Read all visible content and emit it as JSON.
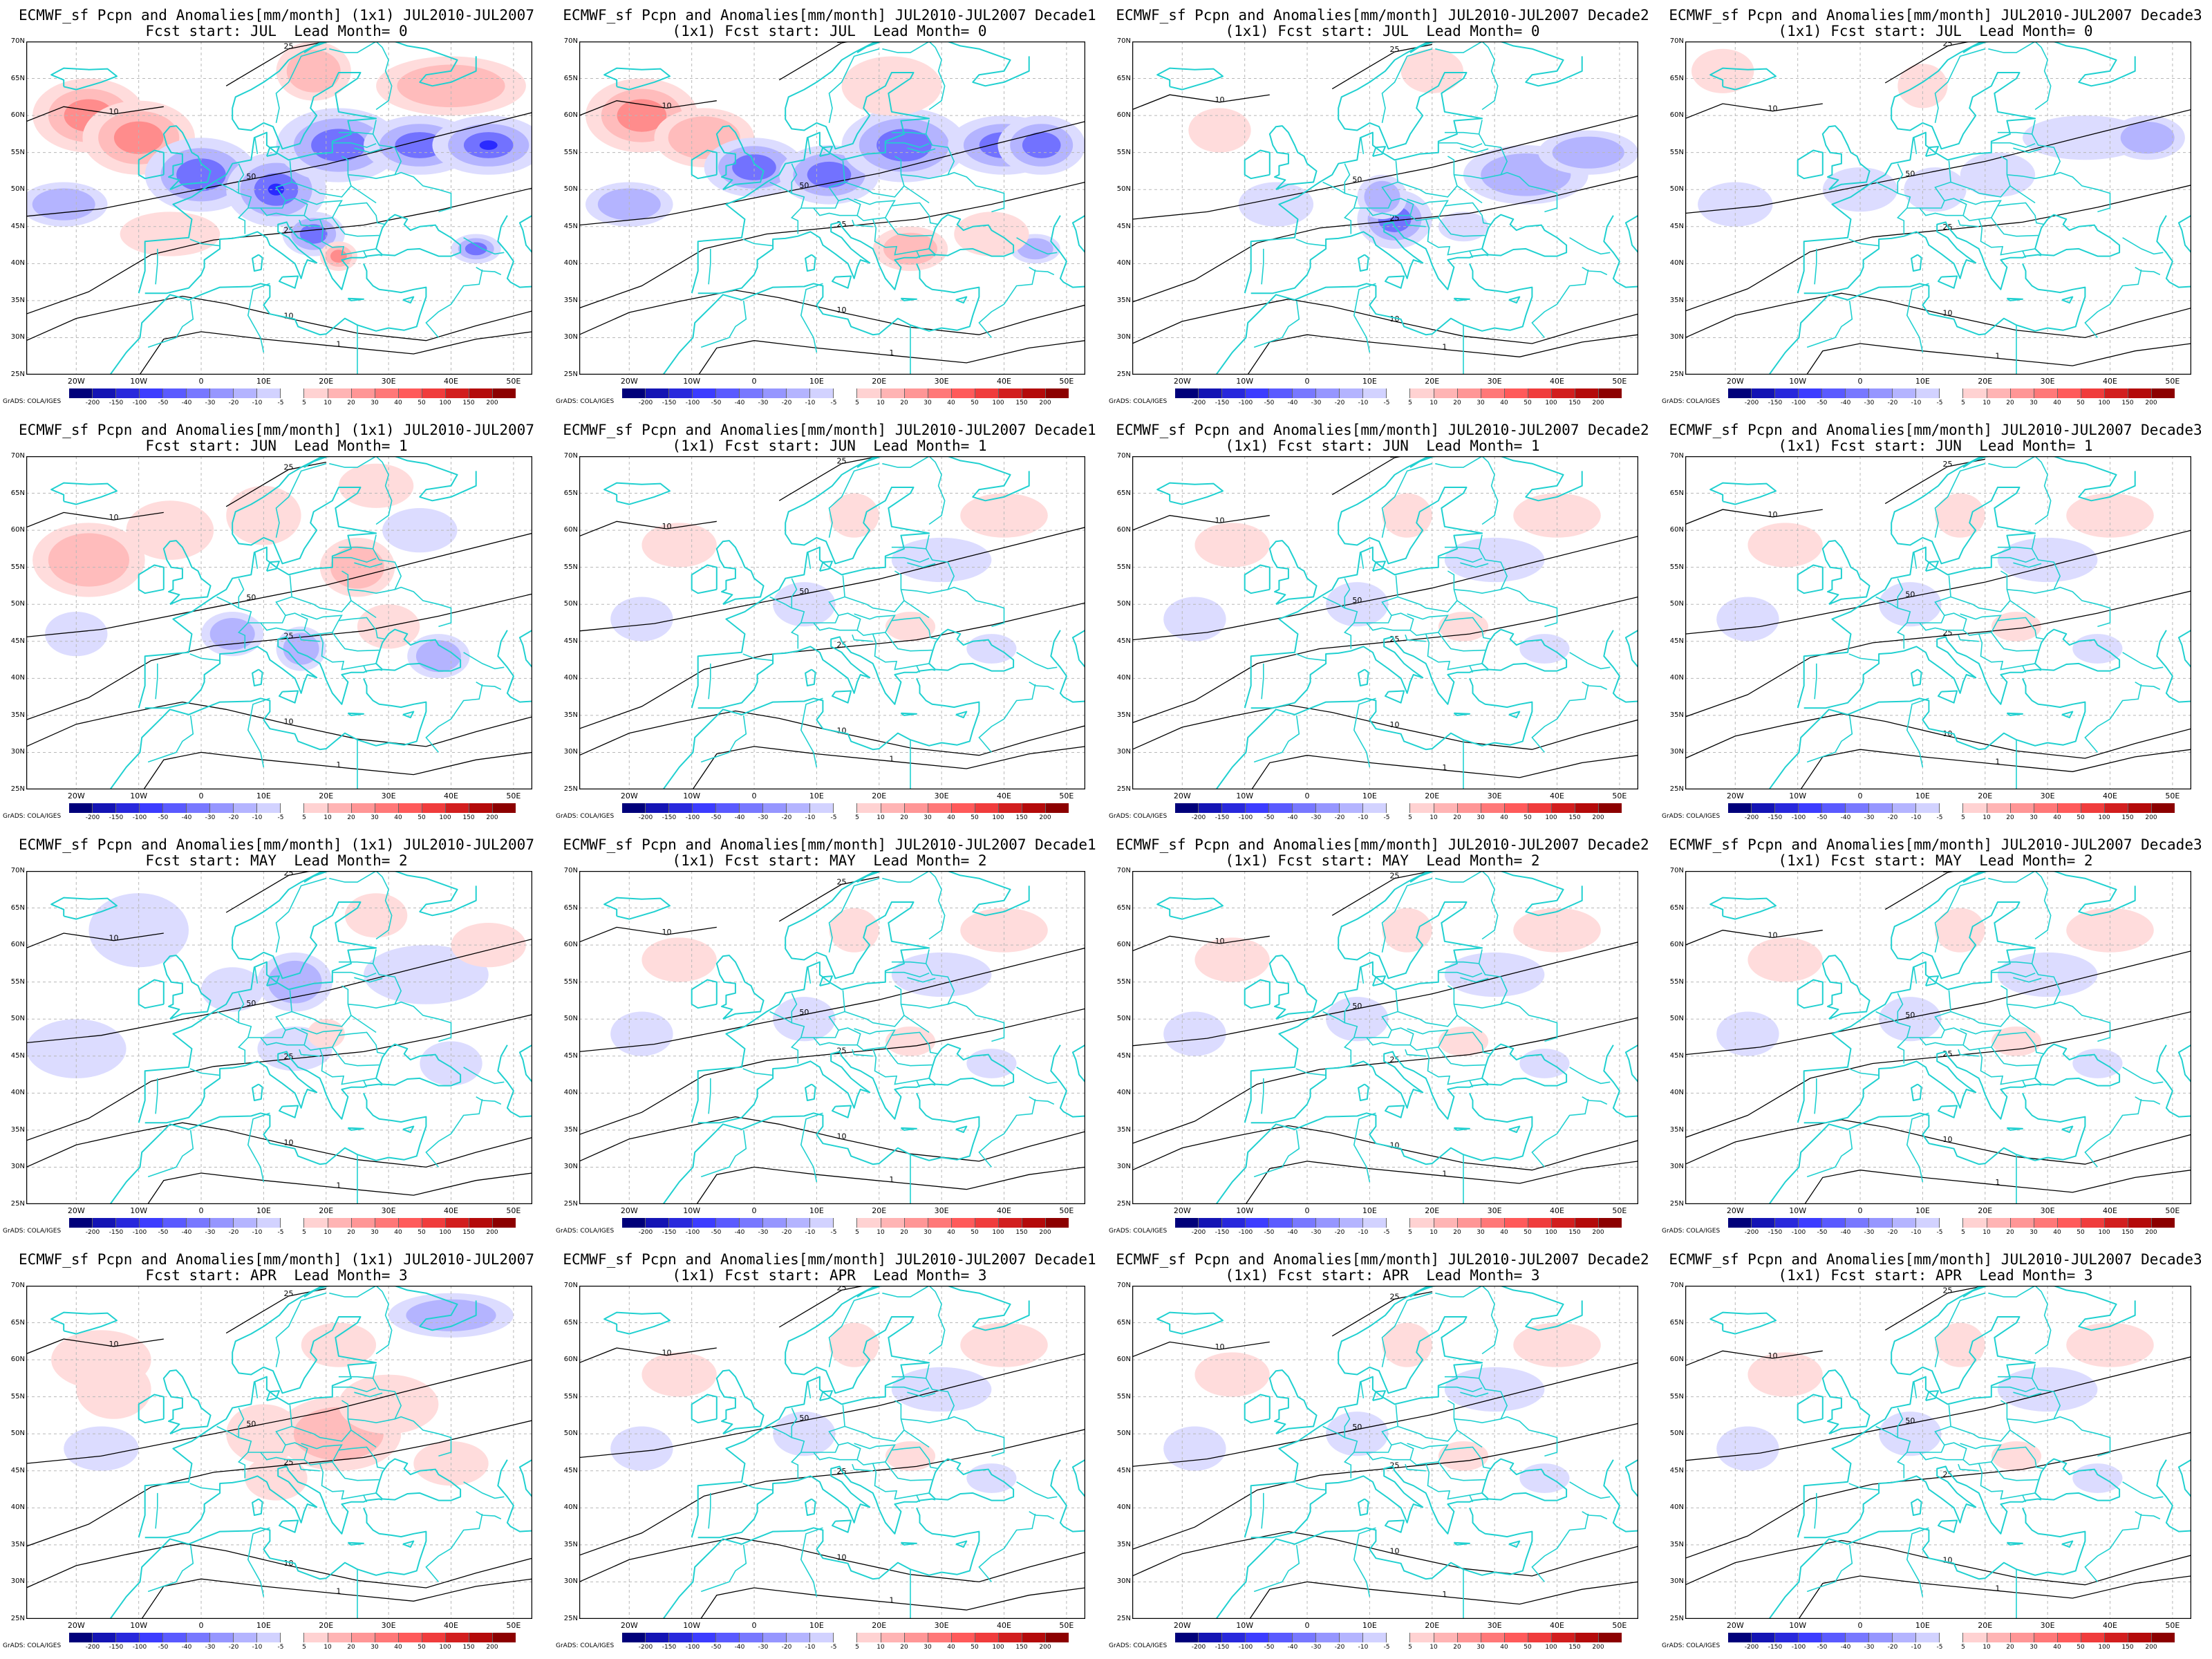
{
  "figure_credit": "GrADS: COLA/IGES",
  "colorbar": {
    "ticks": [
      "-200",
      "-150",
      "-100",
      "-50",
      "-40",
      "-30",
      "-20",
      "-10",
      "-5",
      "5",
      "10",
      "20",
      "30",
      "40",
      "50",
      "100",
      "150",
      "200"
    ],
    "colors": [
      "#00007a",
      "#1414b4",
      "#2828dc",
      "#3c3cff",
      "#5a5aff",
      "#7878ff",
      "#9696ff",
      "#b4b4ff",
      "#d2d2ff",
      "#ffffff",
      "#ffd2d2",
      "#ffb4b4",
      "#ff9696",
      "#ff7878",
      "#ff5a5a",
      "#f03c3c",
      "#d21e1e",
      "#b40a0a",
      "#8c0000"
    ]
  },
  "axes": {
    "lat_labels": [
      "70N",
      "65N",
      "60N",
      "55N",
      "50N",
      "45N",
      "40N",
      "35N",
      "30N",
      "25N"
    ],
    "lon_labels": [
      "20W",
      "10W",
      "0",
      "10E",
      "20E",
      "30E",
      "40E",
      "50E"
    ]
  },
  "colors": {
    "coast": "#20d0d0",
    "contour": "#000000",
    "grid": "#b8b8b8"
  },
  "panels": [
    {
      "title1": "ECMWF_sf Pcpn and Anomalies[mm/month] (1x1) JUL2010-JUL2007",
      "title2": "Fcst start: JUL  Lead Month= 0",
      "anom": "strong"
    },
    {
      "title1": "ECMWF_sf Pcpn and Anomalies[mm/month] JUL2010-JUL2007 Decade1",
      "title2": "(1x1) Fcst start: JUL  Lead Month= 0",
      "anom": "strong2"
    },
    {
      "title1": "ECMWF_sf Pcpn and Anomalies[mm/month] JUL2010-JUL2007 Decade2",
      "title2": "(1x1) Fcst start: JUL  Lead Month= 0",
      "anom": "mid"
    },
    {
      "title1": "ECMWF_sf Pcpn and Anomalies[mm/month] JUL2010-JUL2007 Decade3",
      "title2": "(1x1) Fcst start: JUL  Lead Month= 0",
      "anom": "mid2"
    },
    {
      "title1": "ECMWF_sf Pcpn and Anomalies[mm/month] (1x1) JUL2010-JUL2007",
      "title2": "Fcst start: JUN  Lead Month= 1",
      "anom": "jun"
    },
    {
      "title1": "ECMWF_sf Pcpn and Anomalies[mm/month] JUL2010-JUL2007 Decade1",
      "title2": "(1x1) Fcst start: JUN  Lead Month= 1",
      "anom": "weak"
    },
    {
      "title1": "ECMWF_sf Pcpn and Anomalies[mm/month] JUL2010-JUL2007 Decade2",
      "title2": "(1x1) Fcst start: JUN  Lead Month= 1",
      "anom": "weak"
    },
    {
      "title1": "ECMWF_sf Pcpn and Anomalies[mm/month] JUL2010-JUL2007 Decade3",
      "title2": "(1x1) Fcst start: JUN  Lead Month= 1",
      "anom": "weak"
    },
    {
      "title1": "ECMWF_sf Pcpn and Anomalies[mm/month] (1x1) JUL2010-JUL2007",
      "title2": "Fcst start: MAY  Lead Month= 2",
      "anom": "may"
    },
    {
      "title1": "ECMWF_sf Pcpn and Anomalies[mm/month] JUL2010-JUL2007 Decade1",
      "title2": "(1x1) Fcst start: MAY  Lead Month= 2",
      "anom": "weak"
    },
    {
      "title1": "ECMWF_sf Pcpn and Anomalies[mm/month] JUL2010-JUL2007 Decade2",
      "title2": "(1x1) Fcst start: MAY  Lead Month= 2",
      "anom": "weak"
    },
    {
      "title1": "ECMWF_sf Pcpn and Anomalies[mm/month] JUL2010-JUL2007 Decade3",
      "title2": "(1x1) Fcst start: MAY  Lead Month= 2",
      "anom": "weak"
    },
    {
      "title1": "ECMWF_sf Pcpn and Anomalies[mm/month] (1x1) JUL2010-JUL2007",
      "title2": "Fcst start: APR  Lead Month= 3",
      "anom": "apr"
    },
    {
      "title1": "ECMWF_sf Pcpn and Anomalies[mm/month] JUL2010-JUL2007 Decade1",
      "title2": "(1x1) Fcst start: APR  Lead Month= 3",
      "anom": "weak"
    },
    {
      "title1": "ECMWF_sf Pcpn and Anomalies[mm/month] JUL2010-JUL2007 Decade2",
      "title2": "(1x1) Fcst start: APR  Lead Month= 3",
      "anom": "weak"
    },
    {
      "title1": "ECMWF_sf Pcpn and Anomalies[mm/month] JUL2010-JUL2007 Decade3",
      "title2": "(1x1) Fcst start: APR  Lead Month= 3",
      "anom": "weak"
    }
  ]
}
